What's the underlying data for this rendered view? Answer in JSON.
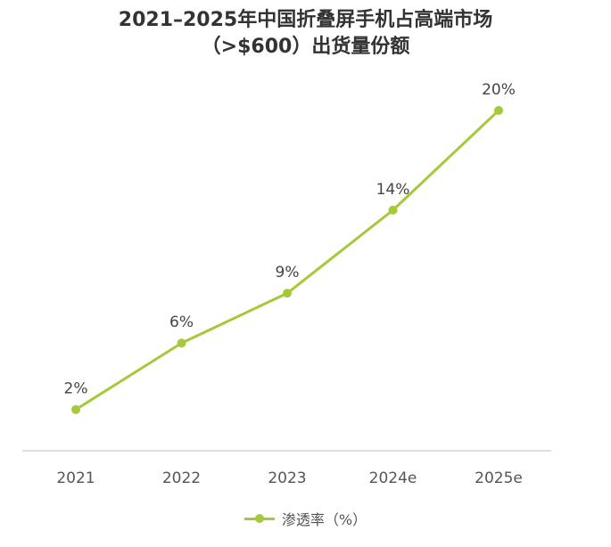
{
  "chart_data": {
    "type": "line",
    "title_line1": "2021–2025年中国折叠屏手机占高端市场",
    "title_line2": "（>$600）出货量份额",
    "categories": [
      "2021",
      "2022",
      "2023",
      "2024e",
      "2025e"
    ],
    "series": [
      {
        "name": "渗透率（%）",
        "values": [
          2,
          6,
          9,
          14,
          20
        ],
        "labels": [
          "2%",
          "6%",
          "9%",
          "14%",
          "20%"
        ]
      }
    ],
    "ylim": [
      0,
      20
    ],
    "grid": false,
    "legend_position": "bottom-center",
    "line_color": "#a6c93a"
  }
}
